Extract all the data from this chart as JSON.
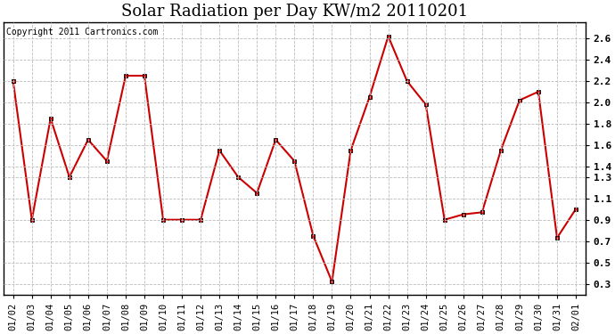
{
  "title": "Solar Radiation per Day KW/m2 20110201",
  "copyright": "Copyright 2011 Cartronics.com",
  "dates": [
    "01/02",
    "01/03",
    "01/04",
    "01/05",
    "01/06",
    "01/07",
    "01/08",
    "01/09",
    "01/10",
    "01/11",
    "01/12",
    "01/13",
    "01/14",
    "01/15",
    "01/16",
    "01/17",
    "01/18",
    "01/19",
    "01/20",
    "01/21",
    "01/22",
    "01/23",
    "01/24",
    "01/25",
    "01/26",
    "01/27",
    "01/28",
    "01/29",
    "01/30",
    "01/31",
    "02/01"
  ],
  "values": [
    2.2,
    0.9,
    1.85,
    1.3,
    1.65,
    1.45,
    2.25,
    2.25,
    0.9,
    0.9,
    0.9,
    1.55,
    1.3,
    1.15,
    1.65,
    1.45,
    0.75,
    0.32,
    1.55,
    2.05,
    2.62,
    2.2,
    1.98,
    0.9,
    0.95,
    0.97,
    1.55,
    2.02,
    2.1,
    0.73,
    1.0
  ],
  "line_color": "#cc0000",
  "marker": "s",
  "marker_size": 3,
  "ylim": [
    0.2,
    2.75
  ],
  "yticks": [
    0.3,
    0.5,
    0.7,
    0.9,
    1.1,
    1.3,
    1.4,
    1.6,
    1.8,
    2.0,
    2.2,
    2.4,
    2.6
  ],
  "ytick_labels": [
    "0.3",
    "0.5",
    "0.7",
    "0.9",
    "1.1",
    "1.3",
    "1.4",
    "1.6",
    "1.8",
    "2.0",
    "2.2",
    "2.4",
    "2.6"
  ],
  "background_color": "#ffffff",
  "grid_color": "#bbbbbb",
  "title_fontsize": 13,
  "tick_fontsize": 7.5,
  "copyright_fontsize": 7
}
